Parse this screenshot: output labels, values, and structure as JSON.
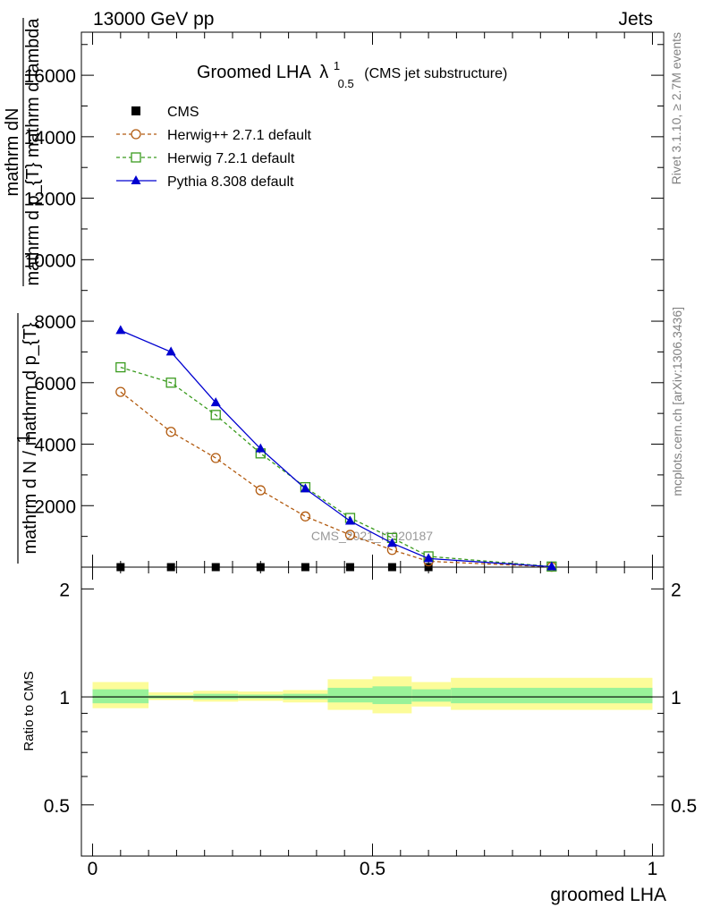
{
  "header": {
    "left": "13000 GeV pp",
    "right": "Jets"
  },
  "title": {
    "main": "Groomed LHA",
    "lambda": "λ",
    "sup": "1",
    "sub": "0.5",
    "paren": "(CMS jet substructure)"
  },
  "side_labels": {
    "rivet": "Rivet 3.1.10, ≥ 2.7M events",
    "mcplots": "mcplots.cern.ch [arXiv:1306.3436]"
  },
  "watermark": "CMS_2021_I1920187",
  "upper_ylabel": {
    "top_numer": "mathrm dN",
    "top_denom": "mathrm d p_{T} mathrm d lambda",
    "one": "1",
    "bottom_denom": "mathrm d N / mathrm d p_{T}"
  },
  "lower_ylabel": "Ratio to CMS",
  "xlabel": "groomed LHA",
  "chart_data": [
    {
      "type": "line",
      "panel": "main",
      "xlim": [
        -0.02,
        1.02
      ],
      "ylim": [
        0,
        17400
      ],
      "yticks": [
        2000,
        4000,
        6000,
        8000,
        10000,
        12000,
        14000,
        16000
      ],
      "ytick_labels": [
        "2000",
        "4000",
        "6000",
        "8000",
        "10000",
        "12000",
        "14000",
        "16000"
      ],
      "legend_position": "top-left",
      "series": [
        {
          "name": "CMS",
          "style": "points",
          "marker": "filled-square",
          "color": "#000000",
          "x": [
            0.05,
            0.14,
            0.22,
            0.3,
            0.38,
            0.46,
            0.535,
            0.6
          ],
          "y": [
            0,
            0,
            0,
            0,
            0,
            0,
            0,
            0
          ]
        },
        {
          "name": "Herwig++ 2.7.1 default",
          "style": "dashed",
          "marker": "open-circle",
          "color": "#b25b10",
          "x": [
            0.05,
            0.14,
            0.22,
            0.3,
            0.38,
            0.46,
            0.535,
            0.6,
            0.82
          ],
          "y": [
            5700,
            4400,
            3550,
            2500,
            1650,
            1050,
            560,
            190,
            10
          ]
        },
        {
          "name": "Herwig 7.2.1 default",
          "style": "dashed",
          "marker": "open-square",
          "color": "#3a9b1e",
          "x": [
            0.05,
            0.14,
            0.22,
            0.3,
            0.38,
            0.46,
            0.535,
            0.6,
            0.82
          ],
          "y": [
            6500,
            6000,
            4950,
            3700,
            2600,
            1600,
            950,
            350,
            20
          ]
        },
        {
          "name": "Pythia 8.308 default",
          "style": "solid",
          "marker": "filled-triangle",
          "color": "#0000d0",
          "x": [
            0.05,
            0.14,
            0.22,
            0.3,
            0.38,
            0.46,
            0.535,
            0.6,
            0.82
          ],
          "y": [
            7700,
            7000,
            5350,
            3850,
            2550,
            1500,
            780,
            280,
            15
          ]
        }
      ]
    },
    {
      "type": "area",
      "panel": "ratio",
      "xlim": [
        -0.02,
        1.02
      ],
      "ylim": [
        0.36,
        2.3
      ],
      "ytick_labels": [
        "0.5",
        "1",
        "2"
      ],
      "xtick_labels": [
        "0",
        "0.5",
        "1"
      ],
      "reference_line": 1,
      "bands": [
        {
          "x0": 0.0,
          "x1": 0.1,
          "outer": [
            0.93,
            1.1
          ],
          "inner": [
            0.96,
            1.05
          ]
        },
        {
          "x0": 0.1,
          "x1": 0.18,
          "outer": [
            0.98,
            1.03
          ],
          "inner": [
            0.99,
            1.01
          ]
        },
        {
          "x0": 0.18,
          "x1": 0.26,
          "outer": [
            0.97,
            1.04
          ],
          "inner": [
            0.985,
            1.02
          ]
        },
        {
          "x0": 0.26,
          "x1": 0.34,
          "outer": [
            0.975,
            1.035
          ],
          "inner": [
            0.99,
            1.015
          ]
        },
        {
          "x0": 0.34,
          "x1": 0.42,
          "outer": [
            0.965,
            1.045
          ],
          "inner": [
            0.985,
            1.02
          ]
        },
        {
          "x0": 0.42,
          "x1": 0.5,
          "outer": [
            0.92,
            1.12
          ],
          "inner": [
            0.965,
            1.06
          ]
        },
        {
          "x0": 0.5,
          "x1": 0.57,
          "outer": [
            0.9,
            1.14
          ],
          "inner": [
            0.955,
            1.07
          ]
        },
        {
          "x0": 0.57,
          "x1": 0.64,
          "outer": [
            0.94,
            1.1
          ],
          "inner": [
            0.97,
            1.05
          ]
        },
        {
          "x0": 0.64,
          "x1": 1.0,
          "outer": [
            0.92,
            1.13
          ],
          "inner": [
            0.96,
            1.06
          ]
        }
      ]
    }
  ],
  "colors": {
    "band_outer": "#fcfc99",
    "band_inner": "#99f299",
    "watermark": "#999999",
    "side_text": "#808080"
  }
}
